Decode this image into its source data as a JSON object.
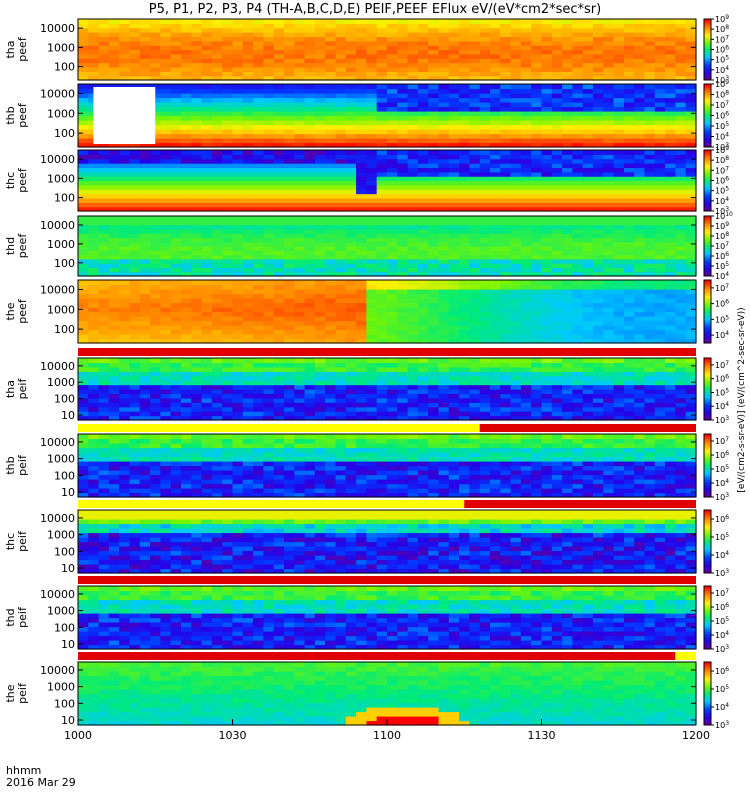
{
  "title": "P5, P1, P2, P3, P4 (TH-A,B,C,D,E) PEIF,PEEF EFlux eV/(eV*cm2*sec*sr)",
  "footer": {
    "time_label": "hhmm",
    "date_label": "2016 Mar 29"
  },
  "x_ticks": [
    "1000",
    "1030",
    "1100",
    "1130",
    "1200"
  ],
  "cbar_unit_label": "[eV/(cm2-s-sr-eV)] (eV/(cm^2-sec-sr-eV))",
  "colors": {
    "saturated_red": "#ff0000",
    "bar_yellow": "#ffff00",
    "bar_red": "#e00000",
    "frame": "#000000"
  },
  "chart_data": {
    "type": "heatmap",
    "x_range_hhmm": [
      "10:00",
      "12:00"
    ],
    "x_tick_values": [
      "10:00",
      "10:30",
      "11:00",
      "11:30",
      "12:00"
    ],
    "y_scale": "log",
    "y_unit": "eV",
    "panels": [
      {
        "ylabel": [
          "tha",
          "peef"
        ],
        "yticks": [
          "10000",
          "1000",
          "100"
        ],
        "ylim": [
          20,
          30000
        ],
        "cbar_ticks": [
          "10^9",
          "10^8",
          "10^7",
          "10^6",
          "10^5",
          "10^4",
          "10^3"
        ],
        "cbar_range": [
          3,
          9
        ],
        "field": "peef_a"
      },
      {
        "ylabel": [
          "thb",
          "peef"
        ],
        "yticks": [
          "10000",
          "1000",
          "100"
        ],
        "ylim": [
          20,
          30000
        ],
        "cbar_ticks": [
          "10^9",
          "10^8",
          "10^7",
          "10^6",
          "10^5",
          "10^4",
          "10^3"
        ],
        "cbar_range": [
          3,
          9
        ],
        "field": "peef_b",
        "data_gap": [
          "10:03",
          "10:15"
        ]
      },
      {
        "ylabel": [
          "thc",
          "peef"
        ],
        "yticks": [
          "10000",
          "1000",
          "100"
        ],
        "ylim": [
          20,
          30000
        ],
        "cbar_ticks": [
          "10^9",
          "10^8",
          "10^7",
          "10^6",
          "10^5",
          "10^4",
          "10^3"
        ],
        "cbar_range": [
          3,
          9
        ],
        "field": "peef_c"
      },
      {
        "ylabel": [
          "thd",
          "peef"
        ],
        "yticks": [
          "10000",
          "1000",
          "100"
        ],
        "ylim": [
          20,
          30000
        ],
        "cbar_ticks": [
          "10^10",
          "10^9",
          "10^8",
          "10^7",
          "10^6",
          "10^5",
          "10^4"
        ],
        "cbar_range": [
          4,
          10
        ],
        "field": "peef_d"
      },
      {
        "ylabel": [
          "the",
          "peef"
        ],
        "yticks": [
          "10000",
          "1000",
          "100"
        ],
        "ylim": [
          20,
          30000
        ],
        "cbar_ticks": [
          "10^7",
          "10^6",
          "10^5",
          "10^4"
        ],
        "cbar_range": [
          3.5,
          7.5
        ],
        "field": "peef_e"
      },
      {
        "ylabel": [
          "tha",
          "peif"
        ],
        "yticks": [
          "10000",
          "1000",
          "100",
          "10"
        ],
        "ylim": [
          5,
          30000
        ],
        "cbar_ticks": [
          "10^7",
          "10^6",
          "10^5",
          "10^4",
          "10^3"
        ],
        "cbar_range": [
          3,
          7.5
        ],
        "field": "peif_a",
        "mode_bar": [
          {
            "from": "10:00",
            "to": "12:00",
            "color": "red"
          }
        ]
      },
      {
        "ylabel": [
          "thb",
          "peif"
        ],
        "yticks": [
          "10000",
          "1000",
          "100",
          "10"
        ],
        "ylim": [
          5,
          30000
        ],
        "cbar_ticks": [
          "10^7",
          "10^6",
          "10^5",
          "10^4",
          "10^3"
        ],
        "cbar_range": [
          3,
          7.5
        ],
        "field": "peif_b",
        "mode_bar": [
          {
            "from": "10:00",
            "to": "11:18",
            "color": "yellow"
          },
          {
            "from": "11:18",
            "to": "12:00",
            "color": "red"
          }
        ]
      },
      {
        "ylabel": [
          "thc",
          "peif"
        ],
        "yticks": [
          "10000",
          "1000",
          "100",
          "10"
        ],
        "ylim": [
          5,
          30000
        ],
        "cbar_ticks": [
          "10^6",
          "10^5",
          "10^4",
          "10^3"
        ],
        "cbar_range": [
          3,
          6.5
        ],
        "field": "peif_c",
        "mode_bar": [
          {
            "from": "10:00",
            "to": "11:15",
            "color": "yellow"
          },
          {
            "from": "11:15",
            "to": "12:00",
            "color": "red"
          }
        ]
      },
      {
        "ylabel": [
          "thd",
          "peif"
        ],
        "yticks": [
          "10000",
          "1000",
          "100",
          "10"
        ],
        "ylim": [
          5,
          30000
        ],
        "cbar_ticks": [
          "10^7",
          "10^6",
          "10^5",
          "10^4",
          "10^3"
        ],
        "cbar_range": [
          3,
          7.5
        ],
        "field": "peif_d",
        "mode_bar": [
          {
            "from": "10:00",
            "to": "12:00",
            "color": "red"
          }
        ]
      },
      {
        "ylabel": [
          "the",
          "peif"
        ],
        "yticks": [
          "10000",
          "1000",
          "100",
          "10"
        ],
        "ylim": [
          5,
          30000
        ],
        "cbar_ticks": [
          "10^6",
          "10^5",
          "10^4",
          "10^3"
        ],
        "cbar_range": [
          3,
          6.5
        ],
        "field": "peif_e",
        "mode_bar": [
          {
            "from": "10:00",
            "to": "11:56",
            "color": "red"
          },
          {
            "from": "11:56",
            "to": "12:00",
            "color": "yellow"
          }
        ]
      }
    ]
  }
}
